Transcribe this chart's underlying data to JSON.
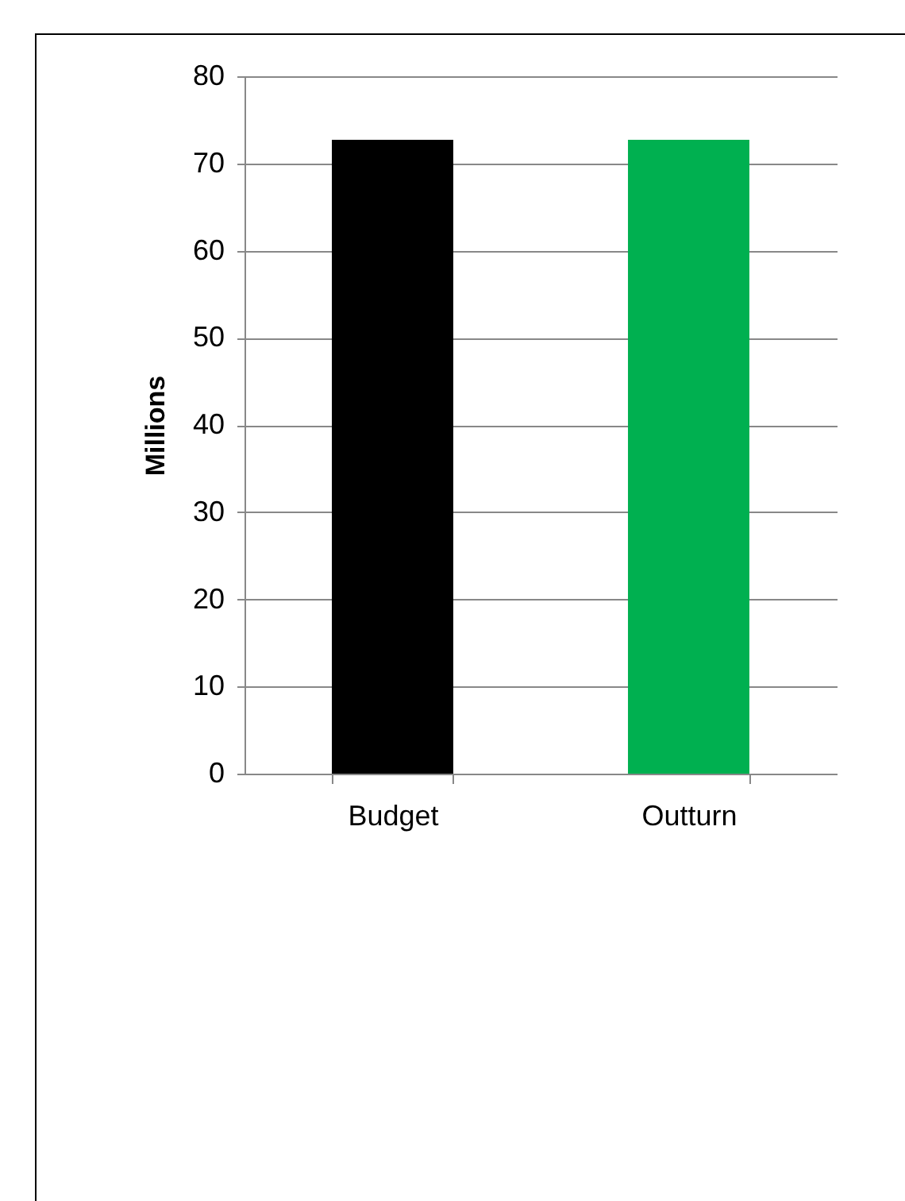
{
  "chart_data": {
    "type": "bar",
    "ylabel": "Millions",
    "categories": [
      "Budget",
      "Outturn"
    ],
    "values": [
      72.7,
      72.7
    ],
    "colors": [
      "#000000",
      "#00b050"
    ],
    "ylim": [
      0,
      80
    ],
    "yticks": [
      0,
      10,
      20,
      30,
      40,
      50,
      60,
      70,
      80
    ],
    "grid": "y",
    "legend": false
  }
}
